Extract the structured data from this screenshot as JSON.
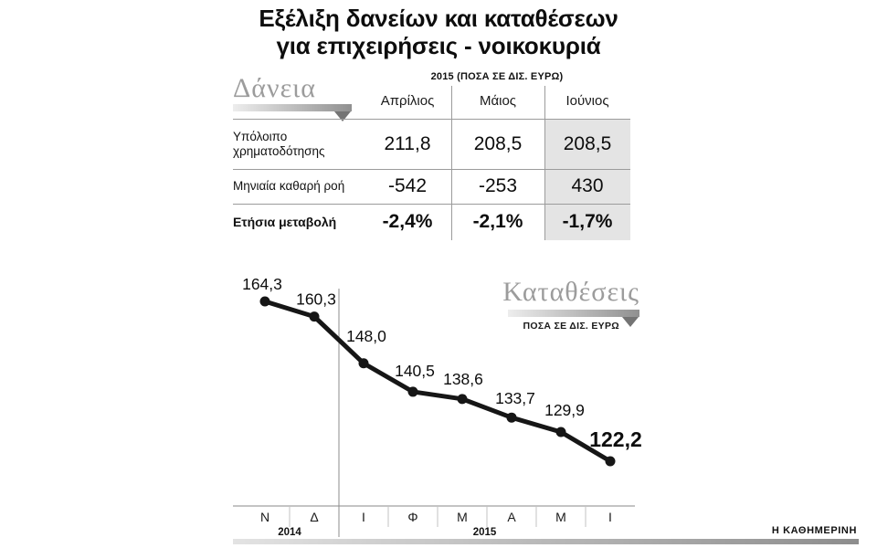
{
  "title": {
    "line1": "Εξέλιξη δανείων και καταθέσεων",
    "line2": "για επιχειρήσεις - νοικοκυριά"
  },
  "loans_table": {
    "section_label": "Δάνεια",
    "header_note": "2015 (ΠΟΣΑ ΣΕ ΔΙΣ. ΕΥΡΩ)",
    "columns": [
      "Απρίλιος",
      "Μάιος",
      "Ιούνιος"
    ],
    "highlight_column": "Ιούνιος",
    "rows": [
      {
        "label": "Υπόλοιπο χρηματοδότησης",
        "values": [
          "211,8",
          "208,5",
          "208,5"
        ],
        "bold": false
      },
      {
        "label": "Μηνιαία καθαρή ροή",
        "values": [
          "-542",
          "-253",
          "430"
        ],
        "bold": false
      },
      {
        "label": "Ετήσια μεταβολή",
        "values": [
          "-2,4%",
          "-2,1%",
          "-1,7%"
        ],
        "bold": true
      }
    ]
  },
  "chart_data": {
    "type": "line",
    "title": "Καταθέσεις",
    "subtitle": "ΠΟΣΑ ΣΕ ΔΙΣ. ΕΥΡΩ",
    "categories": [
      "Ν",
      "Δ",
      "Ι",
      "Φ",
      "Μ",
      "Α",
      "Μ",
      "Ι"
    ],
    "values": [
      164.3,
      160.3,
      148.0,
      140.5,
      138.6,
      133.7,
      129.9,
      122.2
    ],
    "labels": [
      "164,3",
      "160,3",
      "148,0",
      "140,5",
      "138,6",
      "133,7",
      "129,9",
      "122,2"
    ],
    "year_groups": [
      {
        "label": "2014",
        "categories": [
          "Ν",
          "Δ"
        ]
      },
      {
        "label": "2015",
        "categories": [
          "Ι",
          "Φ",
          "Μ",
          "Α",
          "Μ",
          "Ι"
        ]
      }
    ],
    "ylim": [
      120,
      166
    ],
    "grid": false,
    "legend_position": "none",
    "line_color": "#161616"
  },
  "credit": "Η ΚΑΘΗΜΕΡΙΝΗ",
  "colors": {
    "accent_gray": "#9c9c9c",
    "highlight_bg": "#e4e4e4",
    "rule_gray": "#9b9b9b",
    "line": "#161616"
  }
}
